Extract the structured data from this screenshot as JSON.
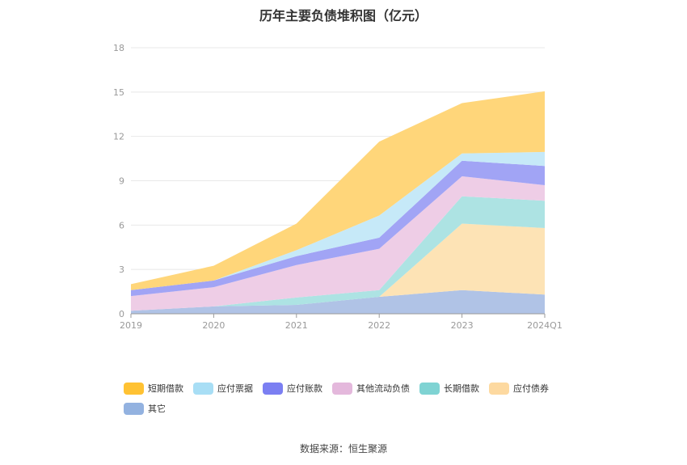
{
  "chart_data": {
    "type": "area",
    "stacked": true,
    "title": "历年主要负债堆积图（亿元）",
    "categories": [
      "2019",
      "2020",
      "2021",
      "2022",
      "2023",
      "2024Q1"
    ],
    "ylim": [
      0,
      18
    ],
    "yticks": [
      0,
      3,
      6,
      9,
      12,
      15,
      18
    ],
    "grid": true,
    "legend_position": "bottom",
    "series": [
      {
        "name": "其它",
        "color": "#93b2e0",
        "fill": "#b0c3e6",
        "values": [
          0.2,
          0.5,
          0.6,
          1.15,
          1.6,
          1.3
        ]
      },
      {
        "name": "应付债券",
        "color": "#fdd9a0",
        "fill": "#fde3b5",
        "values": [
          0,
          0,
          0,
          0,
          4.5,
          4.5
        ]
      },
      {
        "name": "长期借款",
        "color": "#7fd3d3",
        "fill": "#ade3e3",
        "values": [
          0,
          0,
          0.5,
          0.45,
          1.85,
          1.85
        ]
      },
      {
        "name": "其他流动负债",
        "color": "#e4b8dc",
        "fill": "#eecde6",
        "values": [
          1.0,
          1.3,
          2.2,
          2.8,
          1.35,
          1.05
        ]
      },
      {
        "name": "应付账款",
        "color": "#7b7ff2",
        "fill": "#a1a4f5",
        "values": [
          0.4,
          0.45,
          0.6,
          0.75,
          1.05,
          1.3
        ]
      },
      {
        "name": "应付票据",
        "color": "#a8def5",
        "fill": "#c6e9f8",
        "values": [
          0,
          0,
          0.4,
          1.5,
          0.5,
          0.95
        ]
      },
      {
        "name": "短期借款",
        "color": "#ffc233",
        "fill": "#ffd67a",
        "values": [
          0.4,
          1.0,
          1.8,
          5.0,
          3.4,
          4.1
        ]
      }
    ],
    "legend_order": [
      "短期借款",
      "应付票据",
      "应付账款",
      "其他流动负债",
      "长期借款",
      "应付债券",
      "其它"
    ]
  },
  "footer": {
    "source": "数据来源：恒生聚源"
  }
}
